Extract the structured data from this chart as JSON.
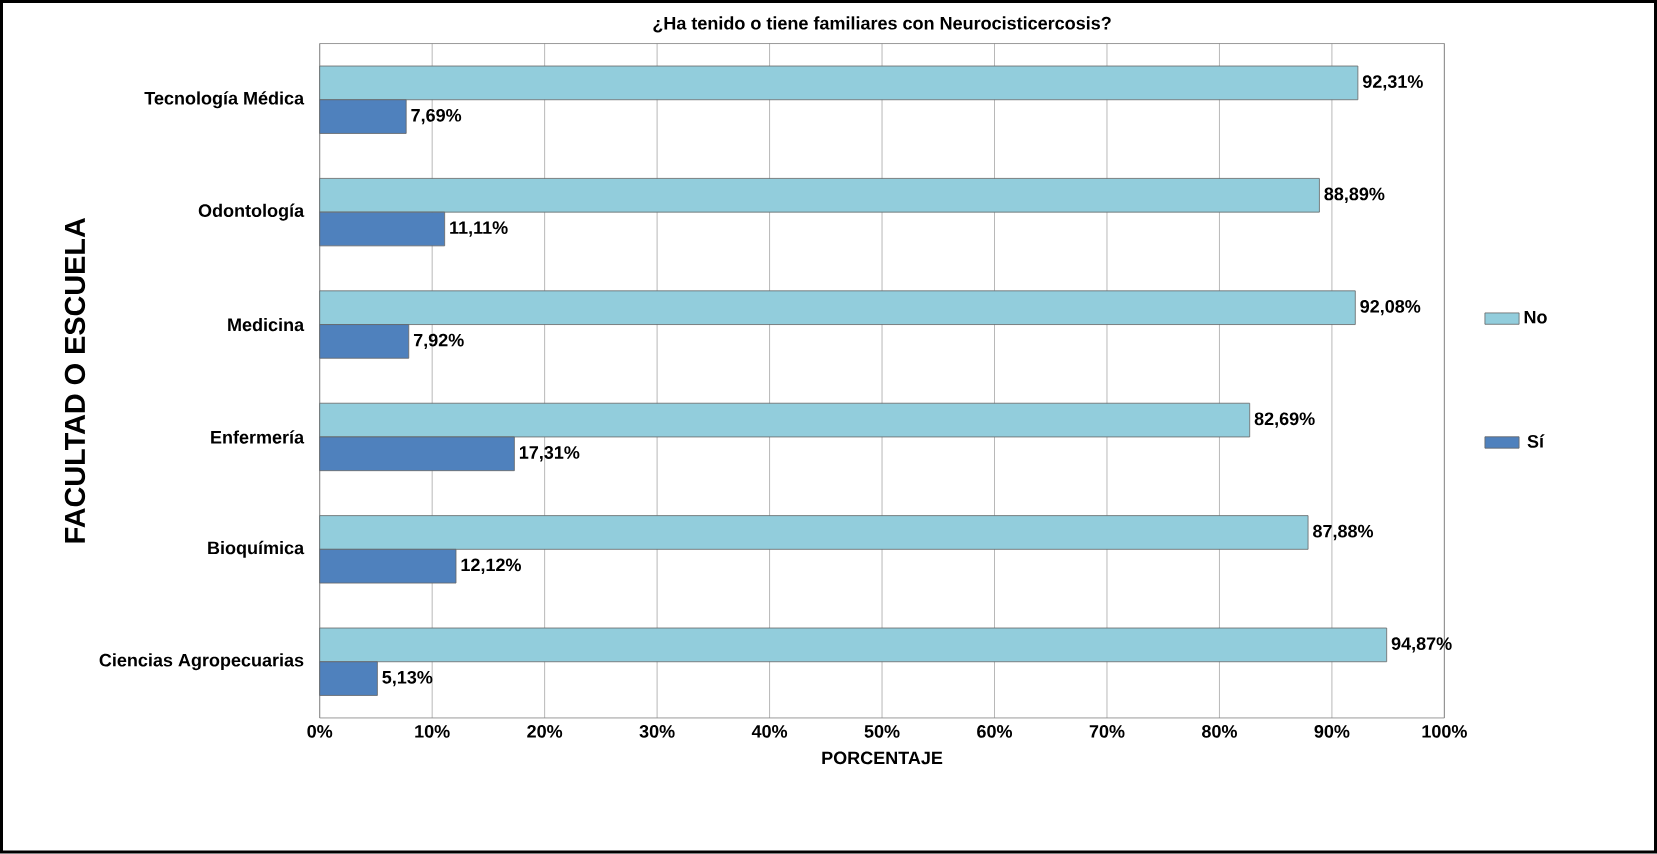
{
  "chart_data": {
    "type": "bar",
    "orientation": "horizontal",
    "title": "¿Ha tenido o tiene familiares  con Neurocisticercosis?",
    "xlabel": "PORCENTAJE",
    "ylabel": "FACULTAD O ESCUELA",
    "categories": [
      "Tecnología Médica",
      "Odontología",
      "Medicina",
      "Enfermería",
      "Bioquímica",
      "Ciencias Agropecuarias"
    ],
    "series": [
      {
        "name": "No",
        "color": "#92cddc",
        "values": [
          92.31,
          88.89,
          92.08,
          82.69,
          87.88,
          94.87
        ],
        "value_labels": [
          "92,31%",
          "88,89%",
          "92,08%",
          "82,69%",
          "87,88%",
          "94,87%"
        ]
      },
      {
        "name": "Sí",
        "color": "#4f81bd",
        "values": [
          7.69,
          11.11,
          7.92,
          17.31,
          12.12,
          5.13
        ],
        "value_labels": [
          "7,69%",
          "11,11%",
          "7,92%",
          "17,31%",
          "12,12%",
          "5,13%"
        ]
      }
    ],
    "xlim": [
      0,
      100
    ],
    "xticks": [
      {
        "value": 0,
        "label": "0%"
      },
      {
        "value": 10,
        "label": "10%"
      },
      {
        "value": 20,
        "label": "20%"
      },
      {
        "value": 30,
        "label": "30%"
      },
      {
        "value": 40,
        "label": "40%"
      },
      {
        "value": 50,
        "label": "50%"
      },
      {
        "value": 60,
        "label": "60%"
      },
      {
        "value": 70,
        "label": "70%"
      },
      {
        "value": 80,
        "label": "80%"
      },
      {
        "value": 90,
        "label": "90%"
      },
      {
        "value": 100,
        "label": "100%"
      }
    ],
    "grid": "x",
    "legend": "right"
  }
}
